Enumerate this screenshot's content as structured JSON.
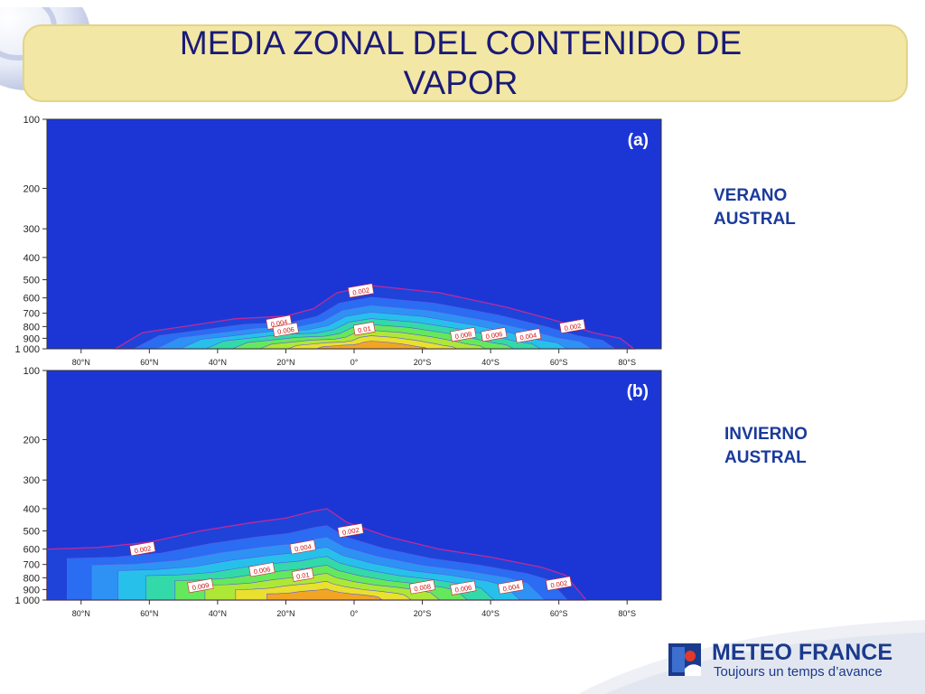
{
  "slide": {
    "title": "MEDIA ZONAL DEL CONTENIDO DE VAPOR",
    "colors": {
      "title": "#1a1a78",
      "band": "#f3e7a5",
      "label": "#1a3a9c",
      "logo": "#1a3a8c"
    }
  },
  "logo": {
    "name": "METEO FRANCE",
    "tagline": "Toujours un temps d’avance",
    "icon": "meteo-france-logo-icon"
  },
  "chart_data": [
    {
      "type": "heatmap",
      "panel_label": "(a)",
      "season_label": "VERANO\nAUSTRAL",
      "y_ticks": [
        "100",
        "200",
        "300",
        "400",
        "500",
        "600",
        "700",
        "800",
        "900",
        "1 000"
      ],
      "y_values": [
        100,
        200,
        300,
        400,
        500,
        600,
        700,
        800,
        900,
        1000
      ],
      "y_scale": "log",
      "y_inverted": true,
      "x_ticks": [
        "80°N",
        "60°N",
        "40°N",
        "20°N",
        "0°",
        "20°S",
        "40°S",
        "60°S",
        "80°S"
      ],
      "x_values": [
        80,
        60,
        40,
        20,
        0,
        -20,
        -40,
        -60,
        -80
      ],
      "xlim": [
        90,
        -90
      ],
      "ylim": [
        1000,
        100
      ],
      "contour_levels": [
        0.002,
        0.004,
        0.006,
        0.008,
        0.01,
        0.012,
        0.014,
        0.016
      ],
      "outer_boundary": [
        [
          70,
          1000
        ],
        [
          62,
          850
        ],
        [
          50,
          800
        ],
        [
          35,
          740
        ],
        [
          20,
          720
        ],
        [
          12,
          670
        ],
        [
          5,
          570
        ],
        [
          -5,
          530
        ],
        [
          -25,
          570
        ],
        [
          -45,
          660
        ],
        [
          -60,
          760
        ],
        [
          -70,
          850
        ],
        [
          -78,
          900
        ],
        [
          -82,
          1000
        ]
      ],
      "contour_labels": [
        {
          "text": "0.002",
          "lat": -2,
          "p": 560
        },
        {
          "text": "0.004",
          "lat": 22,
          "p": 770
        },
        {
          "text": "0.006",
          "lat": 20,
          "p": 830
        },
        {
          "text": "0.01",
          "lat": -3,
          "p": 820
        },
        {
          "text": "0.008",
          "lat": -32,
          "p": 870
        },
        {
          "text": "0.006",
          "lat": -41,
          "p": 870
        },
        {
          "text": "0.004",
          "lat": -51,
          "p": 880
        },
        {
          "text": "0.002",
          "lat": -64,
          "p": 800
        }
      ]
    },
    {
      "type": "heatmap",
      "panel_label": "(b)",
      "season_label": "INVIERNO\nAUSTRAL",
      "y_ticks": [
        "100",
        "200",
        "300",
        "400",
        "500",
        "600",
        "700",
        "800",
        "900",
        "1 000"
      ],
      "y_values": [
        100,
        200,
        300,
        400,
        500,
        600,
        700,
        800,
        900,
        1000
      ],
      "y_scale": "log",
      "y_inverted": true,
      "x_ticks": [
        "80°N",
        "60°N",
        "40°N",
        "20°N",
        "0°",
        "20°S",
        "40°S",
        "60°S",
        "80°S"
      ],
      "x_values": [
        80,
        60,
        40,
        20,
        0,
        -20,
        -40,
        -60,
        -80
      ],
      "xlim": [
        90,
        -90
      ],
      "ylim": [
        1000,
        100
      ],
      "contour_levels": [
        0.002,
        0.004,
        0.006,
        0.008,
        0.01,
        0.012,
        0.014,
        0.016
      ],
      "outer_boundary": [
        [
          90,
          600
        ],
        [
          75,
          590
        ],
        [
          60,
          560
        ],
        [
          45,
          500
        ],
        [
          30,
          460
        ],
        [
          20,
          440
        ],
        [
          12,
          410
        ],
        [
          8,
          400
        ],
        [
          2,
          460
        ],
        [
          -10,
          530
        ],
        [
          -25,
          600
        ],
        [
          -40,
          650
        ],
        [
          -55,
          720
        ],
        [
          -62,
          780
        ],
        [
          -68,
          1000
        ]
      ],
      "contour_labels": [
        {
          "text": "0.002",
          "lat": 62,
          "p": 600
        },
        {
          "text": "0.004",
          "lat": 15,
          "p": 590
        },
        {
          "text": "0.002",
          "lat": 1,
          "p": 500
        },
        {
          "text": "0.006",
          "lat": 27,
          "p": 740
        },
        {
          "text": "0.01",
          "lat": 15,
          "p": 780
        },
        {
          "text": "0.009",
          "lat": 45,
          "p": 870
        },
        {
          "text": "0.008",
          "lat": -20,
          "p": 880
        },
        {
          "text": "0.006",
          "lat": -32,
          "p": 890
        },
        {
          "text": "0.004",
          "lat": -46,
          "p": 880
        },
        {
          "text": "0.002",
          "lat": -60,
          "p": 850
        }
      ]
    }
  ]
}
